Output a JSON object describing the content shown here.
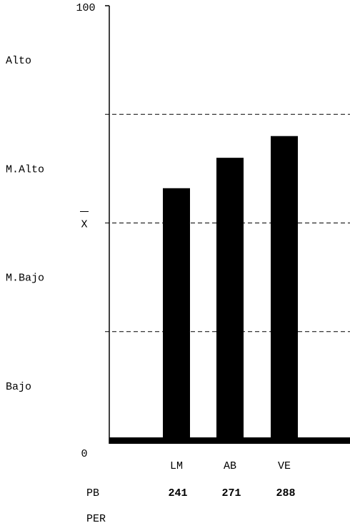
{
  "chart_data": {
    "type": "bar",
    "categories": [
      "LM",
      "AB",
      "VE"
    ],
    "values": [
      58,
      65,
      70
    ],
    "ylim": [
      0,
      100
    ],
    "y_ticks": [
      {
        "value": 0,
        "label": "0"
      },
      {
        "value": 100,
        "label": "100"
      }
    ],
    "reference_lines": [
      {
        "value": 75,
        "label": ""
      },
      {
        "value": 50,
        "label": "X"
      },
      {
        "value": 25,
        "label": ""
      }
    ],
    "band_labels": [
      {
        "label": "Alto",
        "center": 87.5
      },
      {
        "label": "M.Alto",
        "center": 62.5
      },
      {
        "label": "M.Bajo",
        "center": 37.5
      },
      {
        "label": "Bajo",
        "center": 12.5
      }
    ],
    "rows": [
      {
        "label": "PB",
        "values": [
          "241",
          "271",
          "288"
        ]
      },
      {
        "label": "PER",
        "values": [
          "",
          "",
          ""
        ]
      }
    ],
    "grid": false,
    "legend": "none",
    "bar_color": "#000000",
    "line_color": "#000000"
  }
}
